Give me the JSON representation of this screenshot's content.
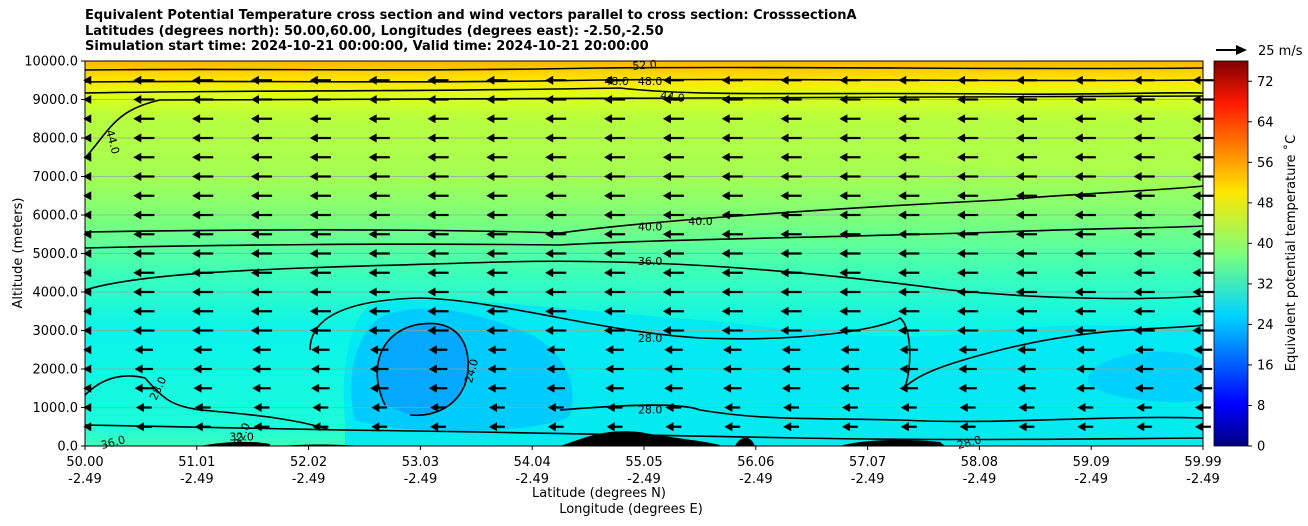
{
  "chart_data": {
    "type": "heatmap",
    "title_lines": [
      "Equivalent Potential Temperature cross section and wind vectors parallel to cross section: CrosssectionA",
      "Latitudes (degrees north): 50.00,60.00, Longitudes (degrees east): -2.50,-2.50",
      "Simulation start time: 2024-10-21 00:00:00, Valid time: 2024-10-21 20:00:00"
    ],
    "ylabel": "Altitude (meters)",
    "xlabel_lines": [
      "Latitude (degrees N)",
      "Longitude (degrees E)"
    ],
    "xlim": [
      50.0,
      59.99
    ],
    "ylim": [
      0,
      10000
    ],
    "y_ticks": [
      0,
      1000,
      2000,
      3000,
      4000,
      5000,
      6000,
      7000,
      8000,
      9000,
      10000
    ],
    "y_tick_labels": [
      "0.0",
      "1000.0",
      "2000.0",
      "3000.0",
      "4000.0",
      "5000.0",
      "6000.0",
      "7000.0",
      "8000.0",
      "9000.0",
      "10000.0"
    ],
    "x_ticks": [
      {
        "lat": "50.00",
        "lon": "-2.49"
      },
      {
        "lat": "51.01",
        "lon": "-2.49"
      },
      {
        "lat": "52.02",
        "lon": "-2.49"
      },
      {
        "lat": "53.03",
        "lon": "-2.49"
      },
      {
        "lat": "54.04",
        "lon": "-2.49"
      },
      {
        "lat": "55.05",
        "lon": "-2.49"
      },
      {
        "lat": "56.06",
        "lon": "-2.49"
      },
      {
        "lat": "57.07",
        "lon": "-2.49"
      },
      {
        "lat": "58.08",
        "lon": "-2.49"
      },
      {
        "lat": "59.09",
        "lon": "-2.49"
      },
      {
        "lat": "59.99",
        "lon": "-2.49"
      }
    ],
    "colorbar": {
      "label": "Equivalent potential temperature ˚C",
      "range": [
        0,
        76
      ],
      "ticks": [
        0,
        8,
        16,
        24,
        32,
        40,
        48,
        56,
        64,
        72
      ]
    },
    "quiver_key": {
      "label": "25 m/s",
      "speed": 25
    },
    "contour_labels": [
      {
        "text": "52.0",
        "lat": 55.0,
        "alt": 9900,
        "rot": -5
      },
      {
        "text": "48.0",
        "lat": 54.75,
        "alt": 9480,
        "rot": 0
      },
      {
        "text": "48.0",
        "lat": 55.05,
        "alt": 9480,
        "rot": 0
      },
      {
        "text": "44.0",
        "lat": 55.25,
        "alt": 9080,
        "rot": 8
      },
      {
        "text": "44.0",
        "lat": 50.25,
        "alt": 7900,
        "rot": 75
      },
      {
        "text": "40.0",
        "lat": 55.05,
        "alt": 5700,
        "rot": 0
      },
      {
        "text": "40.0",
        "lat": 55.5,
        "alt": 5850,
        "rot": 0
      },
      {
        "text": "36.0",
        "lat": 55.05,
        "alt": 4800,
        "rot": 0
      },
      {
        "text": "28.0",
        "lat": 55.05,
        "alt": 2800,
        "rot": 0
      },
      {
        "text": "28.0",
        "lat": 55.05,
        "alt": 950,
        "rot": 0
      },
      {
        "text": "24.0",
        "lat": 53.45,
        "alt": 1950,
        "rot": -75
      },
      {
        "text": "28.0",
        "lat": 50.65,
        "alt": 1500,
        "rot": -65
      },
      {
        "text": "28.0",
        "lat": 57.9,
        "alt": 100,
        "rot": -15
      },
      {
        "text": "36.0",
        "lat": 50.25,
        "alt": 100,
        "rot": -15
      },
      {
        "text": "32.0",
        "lat": 51.4,
        "alt": 300,
        "rot": -65
      },
      {
        "text": "32.0",
        "lat": 51.4,
        "alt": 250,
        "rot": 0
      }
    ]
  }
}
